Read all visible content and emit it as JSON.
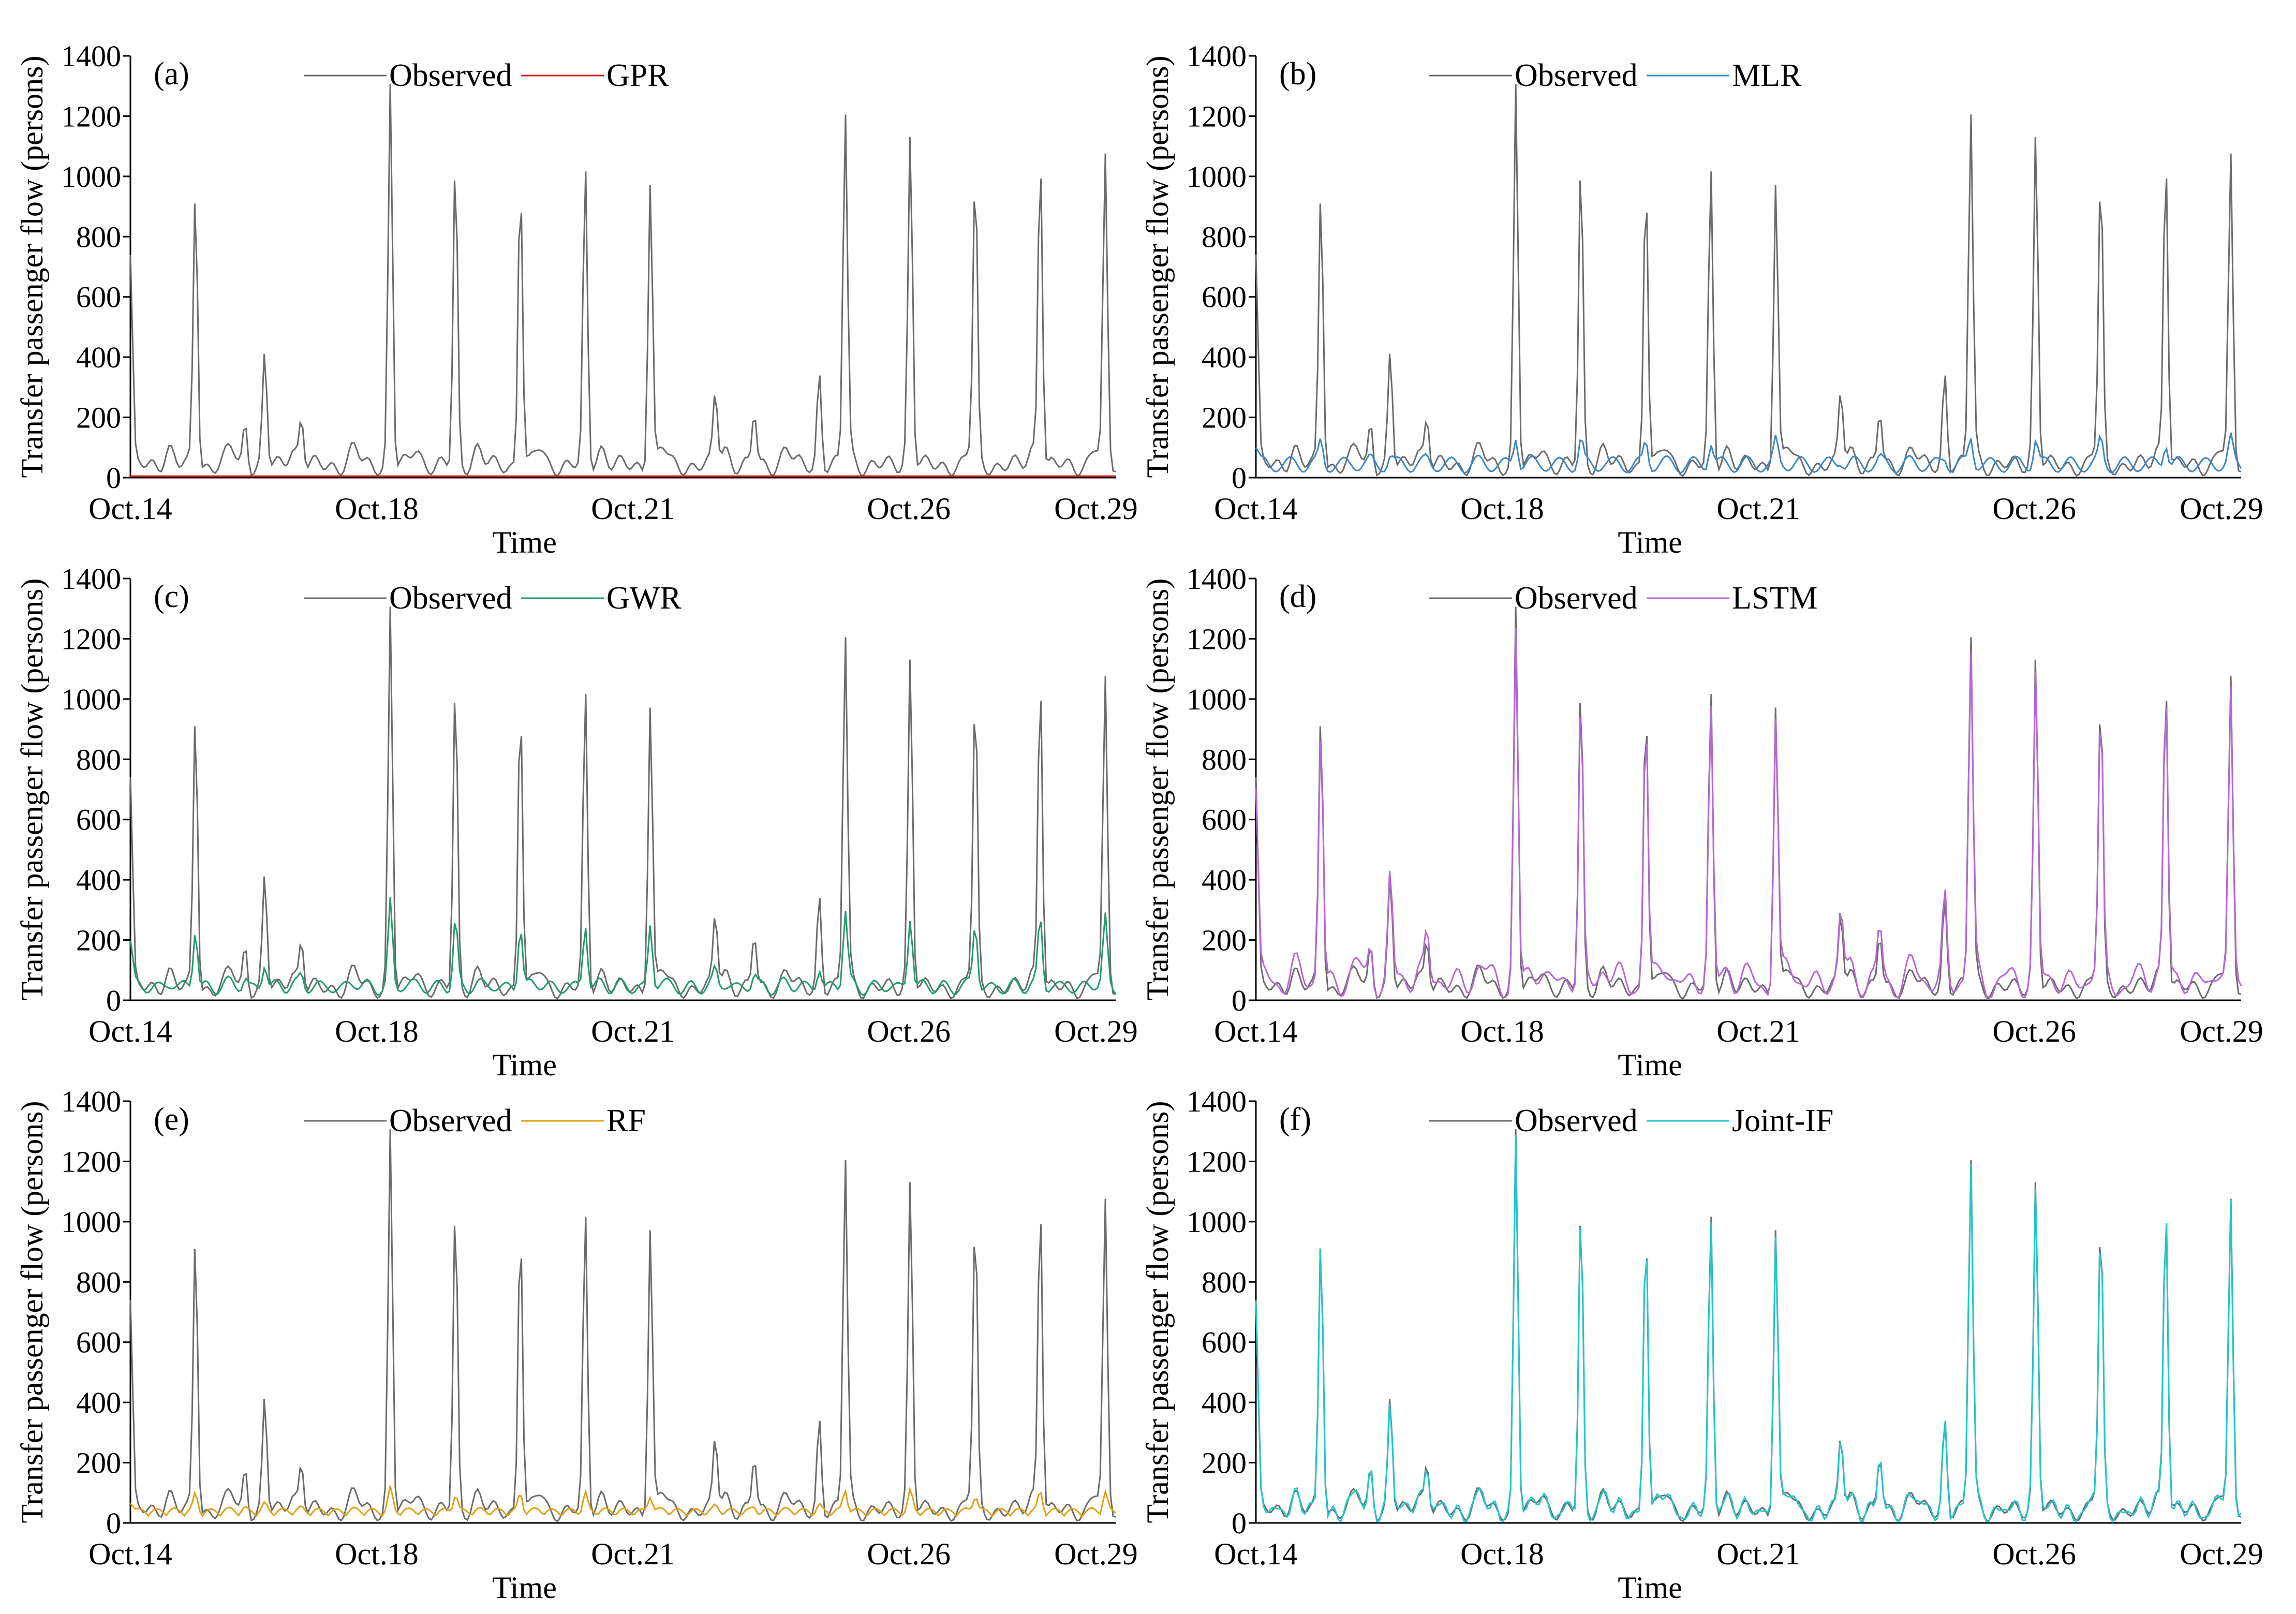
{
  "figure": {
    "y_axis_title": "Transfer passenger flow (persons)",
    "x_axis_title": "Time",
    "observed_label": "Observed",
    "observed_color": "#6b6b6b"
  },
  "chart_data": [
    {
      "type": "line",
      "panel": "(a)",
      "model": "GPR",
      "color": "#e31a1c",
      "xlabel": "Time",
      "ylabel": "Transfer passenger flow (persons)",
      "ylim": [
        0,
        1400
      ],
      "yticks": [
        0,
        200,
        400,
        600,
        800,
        1000,
        1200,
        1400
      ],
      "xtick_labels": [
        "Oct.14",
        "Oct.18",
        "Oct.21",
        "Oct.26",
        "Oct.29"
      ],
      "legend": [
        "Observed",
        "GPR"
      ],
      "legend_position": "top"
    },
    {
      "type": "line",
      "panel": "(b)",
      "model": "MLR",
      "color": "#3b86c8",
      "xlabel": "Time",
      "ylabel": "Transfer passenger flow (persons)",
      "ylim": [
        0,
        1400
      ],
      "yticks": [
        0,
        200,
        400,
        600,
        800,
        1000,
        1200,
        1400
      ],
      "xtick_labels": [
        "Oct.14",
        "Oct.18",
        "Oct.21",
        "Oct.26",
        "Oct.29"
      ],
      "legend": [
        "Observed",
        "MLR"
      ],
      "legend_position": "top"
    },
    {
      "type": "line",
      "panel": "(c)",
      "model": "GWR",
      "color": "#1e9c6a",
      "xlabel": "Time",
      "ylabel": "Transfer passenger flow (persons)",
      "ylim": [
        0,
        1400
      ],
      "yticks": [
        0,
        200,
        400,
        600,
        800,
        1000,
        1200,
        1400
      ],
      "xtick_labels": [
        "Oct.14",
        "Oct.18",
        "Oct.21",
        "Oct.26",
        "Oct.29"
      ],
      "legend": [
        "Observed",
        "GWR"
      ],
      "legend_position": "top"
    },
    {
      "type": "line",
      "panel": "(d)",
      "model": "LSTM",
      "color": "#b766d6",
      "xlabel": "Time",
      "ylabel": "Transfer passenger flow (persons)",
      "ylim": [
        0,
        1400
      ],
      "yticks": [
        0,
        200,
        400,
        600,
        800,
        1000,
        1200,
        1400
      ],
      "xtick_labels": [
        "Oct.14",
        "Oct.18",
        "Oct.21",
        "Oct.26",
        "Oct.29"
      ],
      "legend": [
        "Observed",
        "LSTM"
      ],
      "legend_position": "top"
    },
    {
      "type": "line",
      "panel": "(e)",
      "model": "RF",
      "color": "#e3a012",
      "xlabel": "Time",
      "ylabel": "Transfer passenger flow (persons)",
      "ylim": [
        0,
        1400
      ],
      "yticks": [
        0,
        200,
        400,
        600,
        800,
        1000,
        1200,
        1400
      ],
      "xtick_labels": [
        "Oct.14",
        "Oct.18",
        "Oct.21",
        "Oct.26",
        "Oct.29"
      ],
      "legend": [
        "Observed",
        "RF"
      ],
      "legend_position": "top"
    },
    {
      "type": "line",
      "panel": "(f)",
      "model": "Joint-IF",
      "color": "#1fc7cc",
      "xlabel": "Time",
      "ylabel": "Transfer passenger flow (persons)",
      "ylim": [
        0,
        1400
      ],
      "yticks": [
        0,
        200,
        400,
        600,
        800,
        1000,
        1200,
        1400
      ],
      "xtick_labels": [
        "Oct.14",
        "Oct.18",
        "Oct.21",
        "Oct.26",
        "Oct.29"
      ],
      "legend": [
        "Observed",
        "Joint-IF"
      ],
      "legend_position": "top"
    }
  ]
}
